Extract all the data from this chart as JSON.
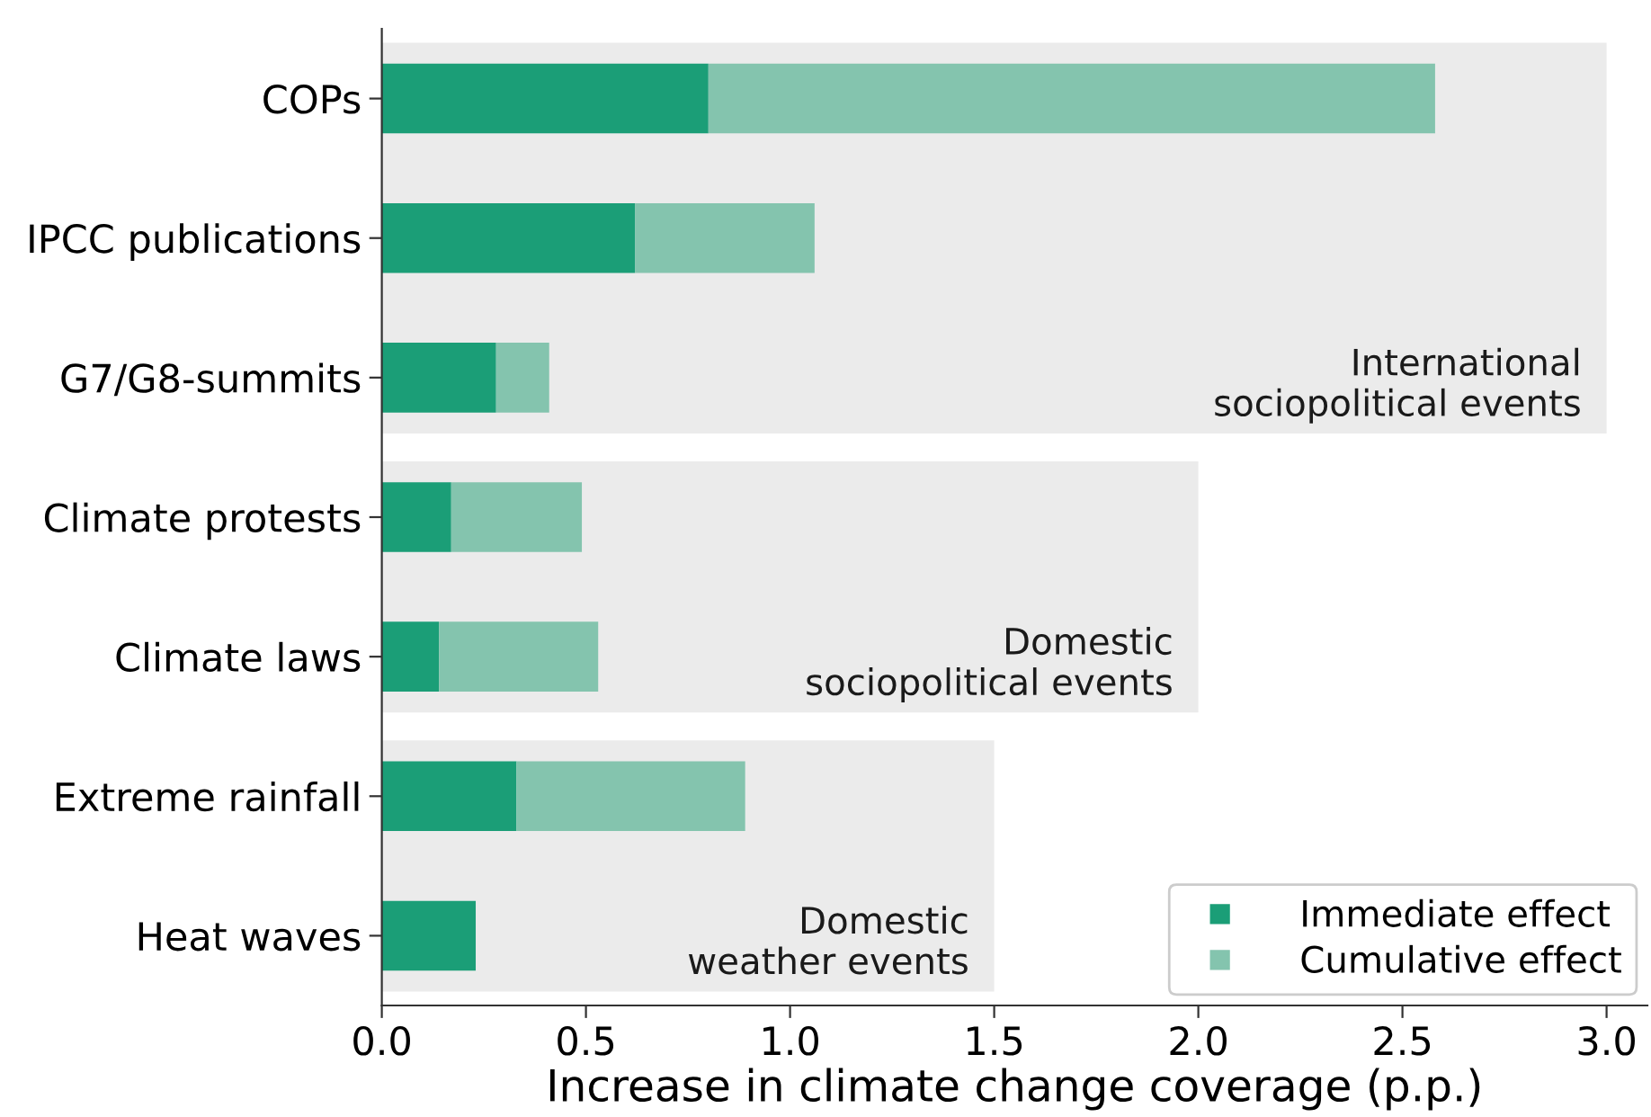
{
  "chart_data": {
    "type": "bar",
    "orientation": "horizontal",
    "stacked": true,
    "xlabel": "Increase in climate change coverage (p.p.)",
    "categories": [
      "COPs",
      "IPCC publications",
      "G7/G8-summits",
      "Climate protests",
      "Climate laws",
      "Extreme rainfall",
      "Heat waves"
    ],
    "series": [
      {
        "name": "Immediate effect",
        "color": "#1b9e77",
        "values": [
          0.8,
          0.62,
          0.28,
          0.17,
          0.14,
          0.33,
          0.23
        ]
      },
      {
        "name": "Cumulative effect",
        "color": "#84c4ae",
        "values": [
          1.78,
          0.44,
          0.13,
          0.32,
          0.39,
          0.56,
          null
        ]
      }
    ],
    "xlim": [
      0,
      3.1
    ],
    "xticks": [
      {
        "value": 0,
        "label": "0.0"
      },
      0.5,
      {
        "value": 1,
        "label": "1.0"
      },
      1.5,
      {
        "value": 2,
        "label": "2.0"
      },
      2.5,
      {
        "value": 3,
        "label": "3.0"
      }
    ],
    "bands": [
      {
        "axis": "y",
        "from": "COPs",
        "to": "G7/G8-summits",
        "color": "#ebebeb"
      },
      {
        "axis": "y",
        "from": "Climate protests",
        "to": "Climate laws",
        "color": "#ebebeb"
      },
      {
        "axis": "y",
        "from": "Extreme rainfall",
        "to": "Heat waves",
        "color": "#ebebeb"
      }
    ],
    "annotations": [
      {
        "text": "International\nsociopolitical events",
        "x": 3.0,
        "y": "G7/G8-summits"
      },
      {
        "text": "Domestic\nsociopolitical events",
        "x": 2.0,
        "y": "Climate laws"
      },
      {
        "text": "Domestic\nweather events",
        "x": 1.5,
        "y": "Heat waves"
      }
    ],
    "legend": "bottom right"
  }
}
